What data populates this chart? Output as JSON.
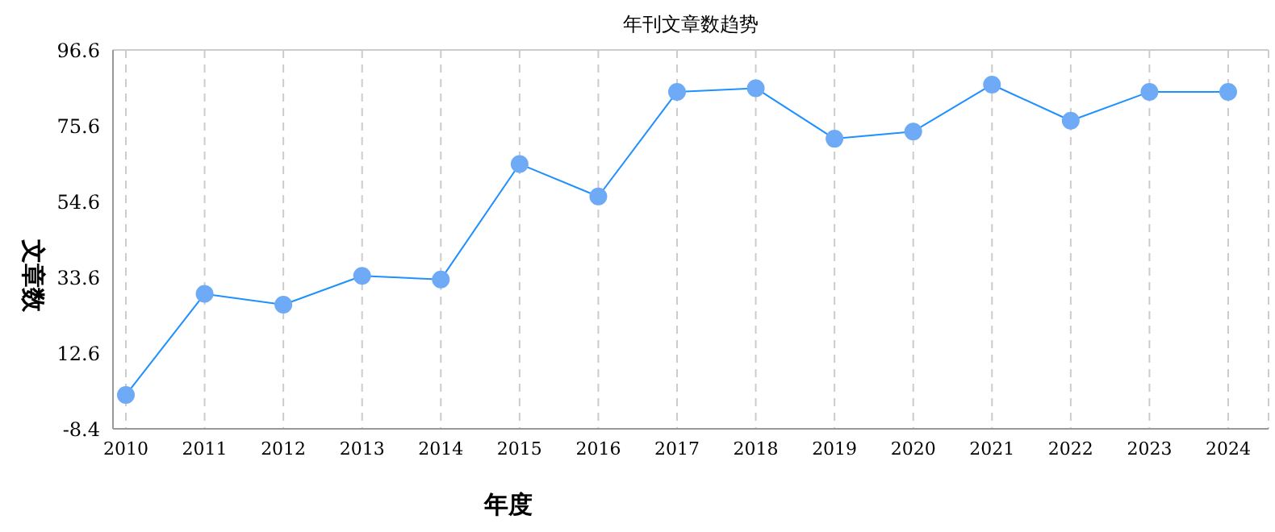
{
  "chart_data": {
    "type": "line",
    "title": "年刊文章数趋势",
    "xlabel": "年度",
    "ylabel": "文章数",
    "categories": [
      "2010",
      "2011",
      "2012",
      "2013",
      "2014",
      "2015",
      "2016",
      "2017",
      "2018",
      "2019",
      "2020",
      "2021",
      "2022",
      "2023",
      "2024"
    ],
    "series": [
      {
        "color": "#1e90ff",
        "values": [
          1,
          29,
          26,
          34,
          33,
          65,
          56,
          85,
          86,
          72,
          74,
          87,
          77,
          85,
          85
        ]
      }
    ],
    "ylim": [
      -8.4,
      96.6
    ],
    "yticks": [
      -8.4,
      12.6,
      33.6,
      54.6,
      75.6,
      96.6
    ],
    "grid": true,
    "marker": "circle",
    "line_style": "solid",
    "legend": false
  }
}
